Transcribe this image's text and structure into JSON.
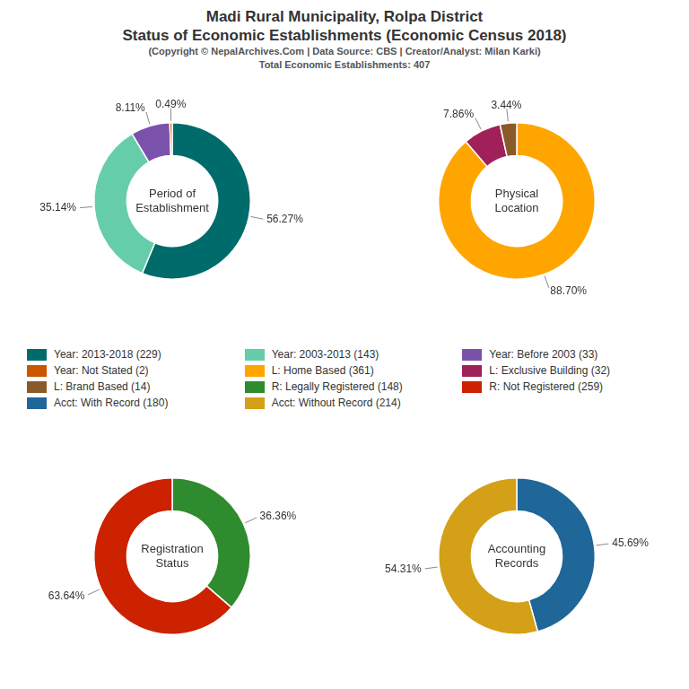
{
  "title": [
    "Madi Rural Municipality, Rolpa District",
    "Status of Economic Establishments (Economic Census 2018)"
  ],
  "subtitle": [
    "(Copyright © NepalArchives.Com | Data Source: CBS | Creator/Analyst: Milan Karki)",
    "Total Economic Establishments: 407"
  ],
  "legend": "center",
  "chart_data": [
    {
      "type": "doughnut",
      "title": "Period of\nEstablishment",
      "categories": [
        "Year: 2013-2018 (229)",
        "Year: 2003-2013 (143)",
        "Year: Before 2003 (33)",
        "Year: Not Stated (2)"
      ],
      "values": [
        56.27,
        35.14,
        8.11,
        0.49
      ],
      "value_labels": [
        "56.27%",
        "35.14%",
        "8.11%",
        "0.49%"
      ],
      "colors": [
        "#006B6B",
        "#66CDAA",
        "#7B52AB",
        "#CC5500"
      ],
      "data_labels": true
    },
    {
      "type": "doughnut",
      "title": "Physical\nLocation",
      "categories": [
        "L: Home Based (361)",
        "L: Exclusive Building (32)",
        "L: Brand Based (14)"
      ],
      "values": [
        88.7,
        7.86,
        3.44
      ],
      "value_labels": [
        "88.70%",
        "7.86%",
        "3.44%"
      ],
      "colors": [
        "#FFA500",
        "#A0205A",
        "#8B5A2B"
      ],
      "data_labels": true
    },
    {
      "type": "doughnut",
      "title": "Registration\nStatus",
      "categories": [
        "R: Legally Registered (148)",
        "R: Not Registered (259)"
      ],
      "values": [
        36.36,
        63.64
      ],
      "value_labels": [
        "36.36%",
        "63.64%"
      ],
      "colors": [
        "#2E8B2E",
        "#CC2200"
      ],
      "data_labels": true
    },
    {
      "type": "doughnut",
      "title": "Accounting\nRecords",
      "categories": [
        "Acct: With Record (180)",
        "Acct: Without Record (214)"
      ],
      "values": [
        45.69,
        54.31
      ],
      "value_labels": [
        "45.69%",
        "54.31%"
      ],
      "colors": [
        "#1F6699",
        "#D4A017"
      ],
      "data_labels": true
    }
  ]
}
